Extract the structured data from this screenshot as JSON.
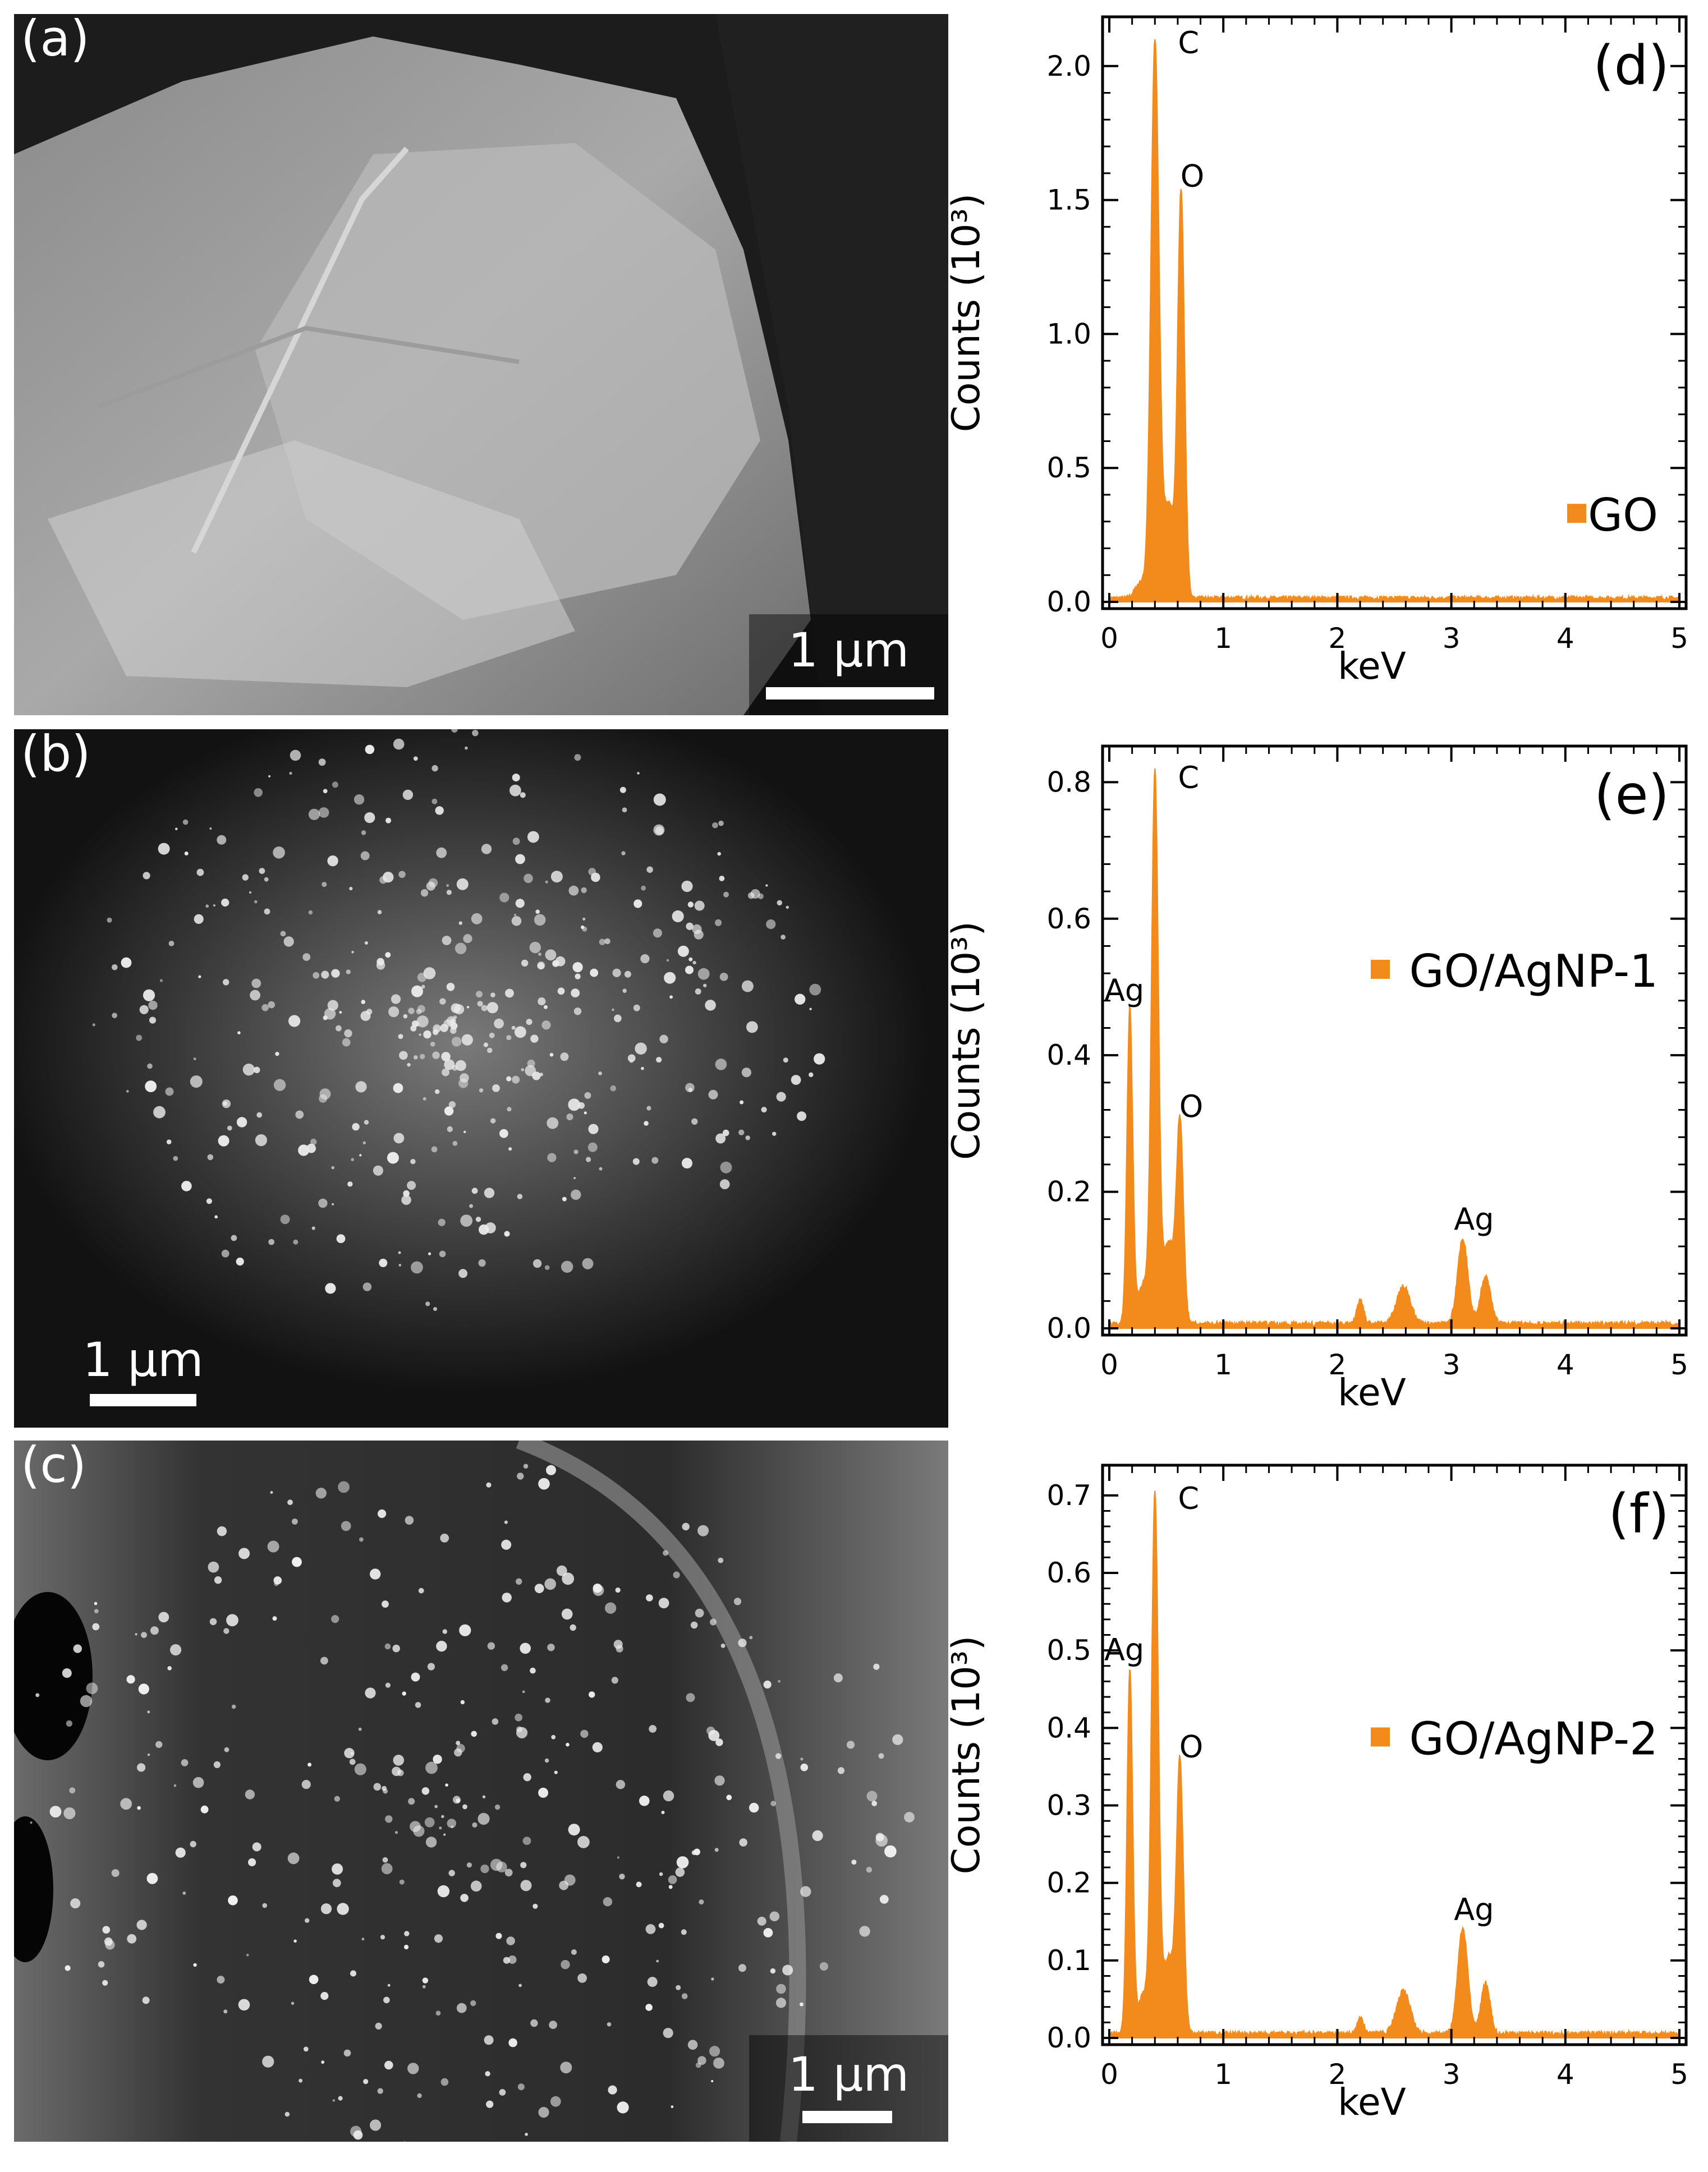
{
  "sem_panels": [
    {
      "label": "(a)",
      "scale_text": "1 µm",
      "caption_icon": "sem-micrograph-go-sheet"
    },
    {
      "label": "(b)",
      "scale_text": "1 µm",
      "caption_icon": "sem-micrograph-go-agnp-1"
    },
    {
      "label": "(c)",
      "scale_text": "1 µm",
      "caption_icon": "sem-micrograph-go-agnp-2"
    }
  ],
  "chart_data": [
    {
      "type": "area",
      "panel_label": "(d)",
      "xlabel": "keV",
      "ylabel": "Counts (10³)",
      "xlim": [
        0,
        5
      ],
      "ylim": [
        0,
        2.1
      ],
      "xticks": [
        0,
        1,
        2,
        3,
        4,
        5
      ],
      "yticks": [
        0.0,
        0.5,
        1.0,
        1.5,
        2.0
      ],
      "ytick_labels": [
        "0.0",
        "0.5",
        "1.0",
        "1.5",
        "2.0"
      ],
      "legend": "GO",
      "legend_position": "bottom-right",
      "color": "#f28a1c",
      "peaks": [
        {
          "x": 0.28,
          "y": 0.06,
          "w": 0.05
        },
        {
          "x": 0.4,
          "y": 2.07,
          "w": 0.035
        },
        {
          "x": 0.52,
          "y": 0.35,
          "w": 0.05
        },
        {
          "x": 0.63,
          "y": 1.5,
          "w": 0.03
        }
      ],
      "baseline": 0.015,
      "annotations": [
        {
          "text": "C",
          "x": 0.4,
          "y": 2.07
        },
        {
          "text": "O",
          "x": 0.63,
          "y": 1.5
        }
      ]
    },
    {
      "type": "area",
      "panel_label": "(e)",
      "xlabel": "keV",
      "ylabel": "Counts (10³)",
      "xlim": [
        0,
        5
      ],
      "ylim": [
        0,
        0.82
      ],
      "xticks": [
        0,
        1,
        2,
        3,
        4,
        5
      ],
      "yticks": [
        0.0,
        0.2,
        0.4,
        0.6,
        0.8
      ],
      "ytick_labels": [
        "0.0",
        "0.2",
        "0.4",
        "0.6",
        "0.8"
      ],
      "legend": "GO/AgNP-1",
      "legend_position": "top-right",
      "color": "#f28a1c",
      "peaks": [
        {
          "x": 0.18,
          "y": 0.46,
          "w": 0.025
        },
        {
          "x": 0.3,
          "y": 0.06,
          "w": 0.05
        },
        {
          "x": 0.4,
          "y": 0.8,
          "w": 0.03
        },
        {
          "x": 0.52,
          "y": 0.12,
          "w": 0.05
        },
        {
          "x": 0.62,
          "y": 0.29,
          "w": 0.03
        },
        {
          "x": 2.2,
          "y": 0.035,
          "w": 0.03
        },
        {
          "x": 2.58,
          "y": 0.055,
          "w": 0.06
        },
        {
          "x": 3.1,
          "y": 0.125,
          "w": 0.045
        },
        {
          "x": 3.3,
          "y": 0.07,
          "w": 0.045
        }
      ],
      "baseline": 0.007,
      "annotations": [
        {
          "text": "Ag",
          "x": 0.18,
          "y": 0.46
        },
        {
          "text": "C",
          "x": 0.4,
          "y": 0.8
        },
        {
          "text": "O",
          "x": 0.62,
          "y": 0.29
        },
        {
          "text": "Ag",
          "x": 3.1,
          "y": 0.125
        }
      ]
    },
    {
      "type": "area",
      "panel_label": "(f)",
      "xlabel": "keV",
      "ylabel": "Counts (10³)",
      "xlim": [
        0,
        5
      ],
      "ylim": [
        0,
        0.71
      ],
      "xticks": [
        0,
        1,
        2,
        3,
        4,
        5
      ],
      "yticks": [
        0.0,
        0.1,
        0.2,
        0.3,
        0.4,
        0.5,
        0.6,
        0.7
      ],
      "ytick_labels": [
        "0.0",
        "0.1",
        "0.2",
        "0.3",
        "0.4",
        "0.5",
        "0.6",
        "0.7"
      ],
      "legend": "GO/AgNP-2",
      "legend_position": "center-right",
      "color": "#f28a1c",
      "peaks": [
        {
          "x": 0.18,
          "y": 0.47,
          "w": 0.025
        },
        {
          "x": 0.3,
          "y": 0.05,
          "w": 0.05
        },
        {
          "x": 0.4,
          "y": 0.69,
          "w": 0.03
        },
        {
          "x": 0.52,
          "y": 0.1,
          "w": 0.05
        },
        {
          "x": 0.62,
          "y": 0.345,
          "w": 0.03
        },
        {
          "x": 2.2,
          "y": 0.02,
          "w": 0.03
        },
        {
          "x": 2.58,
          "y": 0.055,
          "w": 0.06
        },
        {
          "x": 3.1,
          "y": 0.135,
          "w": 0.045
        },
        {
          "x": 3.3,
          "y": 0.065,
          "w": 0.04
        }
      ],
      "baseline": 0.006,
      "annotations": [
        {
          "text": "Ag",
          "x": 0.18,
          "y": 0.47
        },
        {
          "text": "C",
          "x": 0.4,
          "y": 0.69
        },
        {
          "text": "O",
          "x": 0.62,
          "y": 0.345
        },
        {
          "text": "Ag",
          "x": 3.1,
          "y": 0.135
        }
      ]
    }
  ]
}
